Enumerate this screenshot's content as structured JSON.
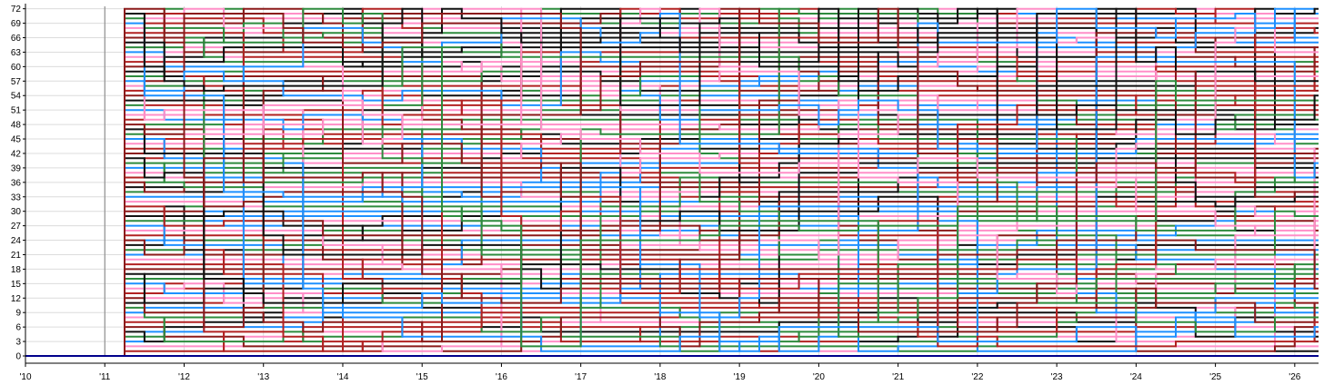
{
  "chart_data": {
    "type": "line",
    "title": "",
    "xlabel": "",
    "ylabel": "",
    "x_tick_labels": [
      "'10",
      "'11",
      "'12",
      "'13",
      "'14",
      "'15",
      "'16",
      "'17",
      "'18",
      "'19",
      "'20",
      "'21",
      "'22",
      "'23",
      "'24",
      "'25",
      "'26"
    ],
    "x_tick_values": [
      2010,
      2011,
      2012,
      2013,
      2014,
      2015,
      2016,
      2017,
      2018,
      2019,
      2020,
      2021,
      2022,
      2023,
      2024,
      2025,
      2026
    ],
    "xlim": [
      2010,
      2026.3
    ],
    "y_tick_labels": [
      "0",
      "3",
      "6",
      "9",
      "12",
      "15",
      "18",
      "21",
      "24",
      "27",
      "30",
      "33",
      "36",
      "39",
      "42",
      "45",
      "48",
      "51",
      "54",
      "57",
      "60",
      "63",
      "66",
      "69",
      "72"
    ],
    "y_tick_values": [
      0,
      3,
      6,
      9,
      12,
      15,
      18,
      21,
      24,
      27,
      30,
      33,
      36,
      39,
      42,
      45,
      48,
      51,
      54,
      57,
      60,
      63,
      66,
      69,
      72
    ],
    "ylim": [
      0,
      72.5
    ],
    "grid": true,
    "legend": "none",
    "series_start_x": 2011.25,
    "series_end_x": 2026.3,
    "level_min": 1,
    "level_max": 72,
    "step_interval_years": 0.25,
    "colors": [
      "#b22222",
      "#ff8fc8",
      "#1e90ff",
      "#2e8b3e",
      "#111111",
      "#8b1a1a"
    ],
    "baseline": {
      "x": [
        2010,
        2026.3
      ],
      "y": [
        0,
        0
      ],
      "color": "#00008b"
    },
    "reference_line": {
      "x": 2011,
      "color": "#808080"
    }
  }
}
